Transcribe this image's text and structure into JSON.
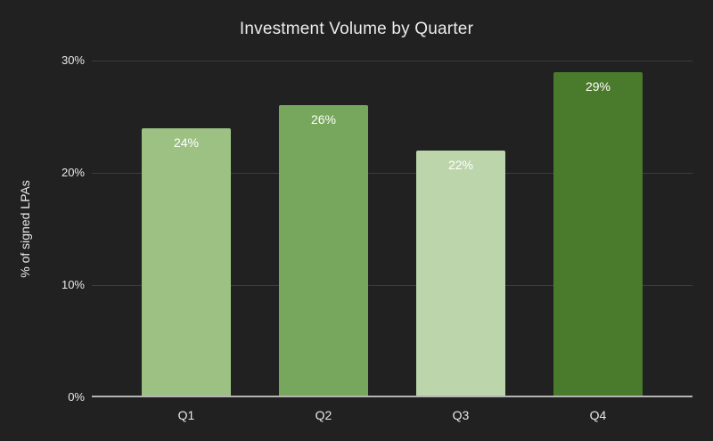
{
  "chart_data": {
    "type": "bar",
    "title": "Investment Volume by Quarter",
    "categories": [
      "Q1",
      "Q2",
      "Q3",
      "Q4"
    ],
    "values": [
      24,
      26,
      22,
      29
    ],
    "value_labels": [
      "24%",
      "26%",
      "22%",
      "29%"
    ],
    "bar_colors": [
      "#9cc183",
      "#77a75c",
      "#bdd5ab",
      "#4a7a2b"
    ],
    "xlabel": "",
    "ylabel": "% of signed LPAs",
    "ylim": [
      0,
      30
    ],
    "yticks": [
      0,
      10,
      20,
      30
    ],
    "ytick_labels": [
      "0%",
      "10%",
      "20%",
      "30%"
    ],
    "grid": "horizontal",
    "legend": "none",
    "value_label_position": "inside-top"
  },
  "colors": {
    "background": "#212121",
    "gridline": "#3d3d3d",
    "axis_line": "#b5b5b5",
    "title_text": "#ececec",
    "label_text": "#e8e8e8",
    "value_text": "#ffffff"
  }
}
